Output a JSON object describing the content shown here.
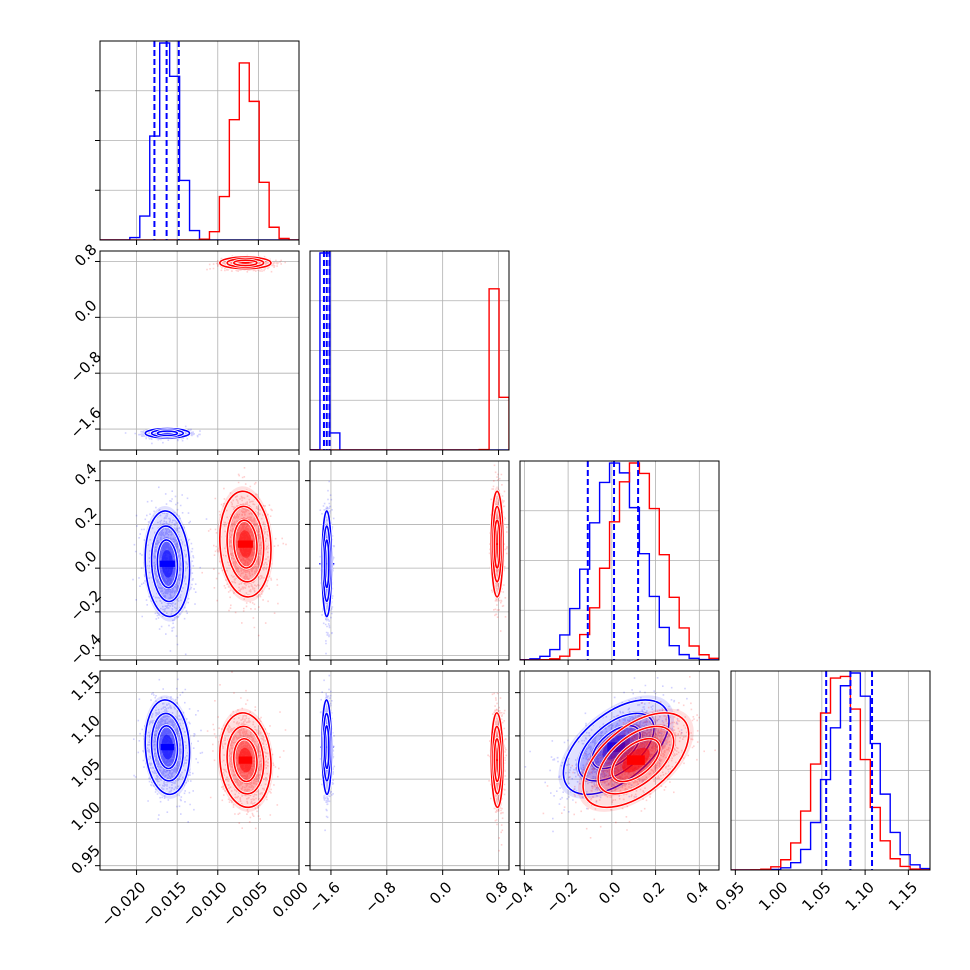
{
  "chart_data": {
    "type": "scatter",
    "subtype": "corner-plot",
    "title": "",
    "grid": true,
    "legend": "none",
    "colors": {
      "series_a": "#0000ff",
      "series_b": "#ff0000"
    },
    "parameters": [
      {
        "range": [
          -0.0245,
          0.0
        ],
        "ticks": [
          -0.02,
          -0.015,
          -0.01,
          -0.005,
          0.0
        ],
        "tick_labels": [
          "−0.020",
          "−0.015",
          "−0.010",
          "−0.005",
          "0.000"
        ]
      },
      {
        "range": [
          -1.9,
          0.95
        ],
        "ticks": [
          -1.6,
          -0.8,
          0.0,
          0.8
        ],
        "tick_labels": [
          "−1.6",
          "−0.8",
          "0.0",
          "0.8"
        ]
      },
      {
        "range": [
          -0.42,
          0.49
        ],
        "ticks": [
          -0.4,
          -0.2,
          0.0,
          0.2,
          0.4
        ],
        "tick_labels": [
          "−0.4",
          "−0.2",
          "0.0",
          "0.2",
          "0.4"
        ]
      },
      {
        "range": [
          0.945,
          1.175
        ],
        "ticks": [
          0.95,
          1.0,
          1.05,
          1.1,
          1.15
        ],
        "tick_labels": [
          "0.95",
          "1.00",
          "1.05",
          "1.10",
          "1.15"
        ]
      }
    ],
    "series": [
      {
        "mean": [
          -0.0162,
          -1.66,
          0.02,
          1.087
        ],
        "sd": [
          0.0013,
          0.032,
          0.115,
          0.026
        ],
        "corr": {
          "2-3": 0.55,
          "0-2": -0.1,
          "0-3": -0.1,
          "1-3": -0.05
        },
        "quantiles": [
          [
            -0.0178,
            -0.0163,
            -0.0148
          ],
          [
            -1.7,
            -1.66,
            -1.62
          ],
          [
            -0.11,
            0.01,
            0.12
          ],
          [
            1.055,
            1.083,
            1.108
          ]
        ]
      },
      {
        "mean": [
          -0.0066,
          0.78,
          0.11,
          1.072
        ],
        "sd": [
          0.0015,
          0.04,
          0.115,
          0.026
        ],
        "corr": {
          "2-3": 0.55,
          "0-2": -0.1,
          "0-3": -0.1,
          "1-3": -0.05
        }
      }
    ]
  }
}
